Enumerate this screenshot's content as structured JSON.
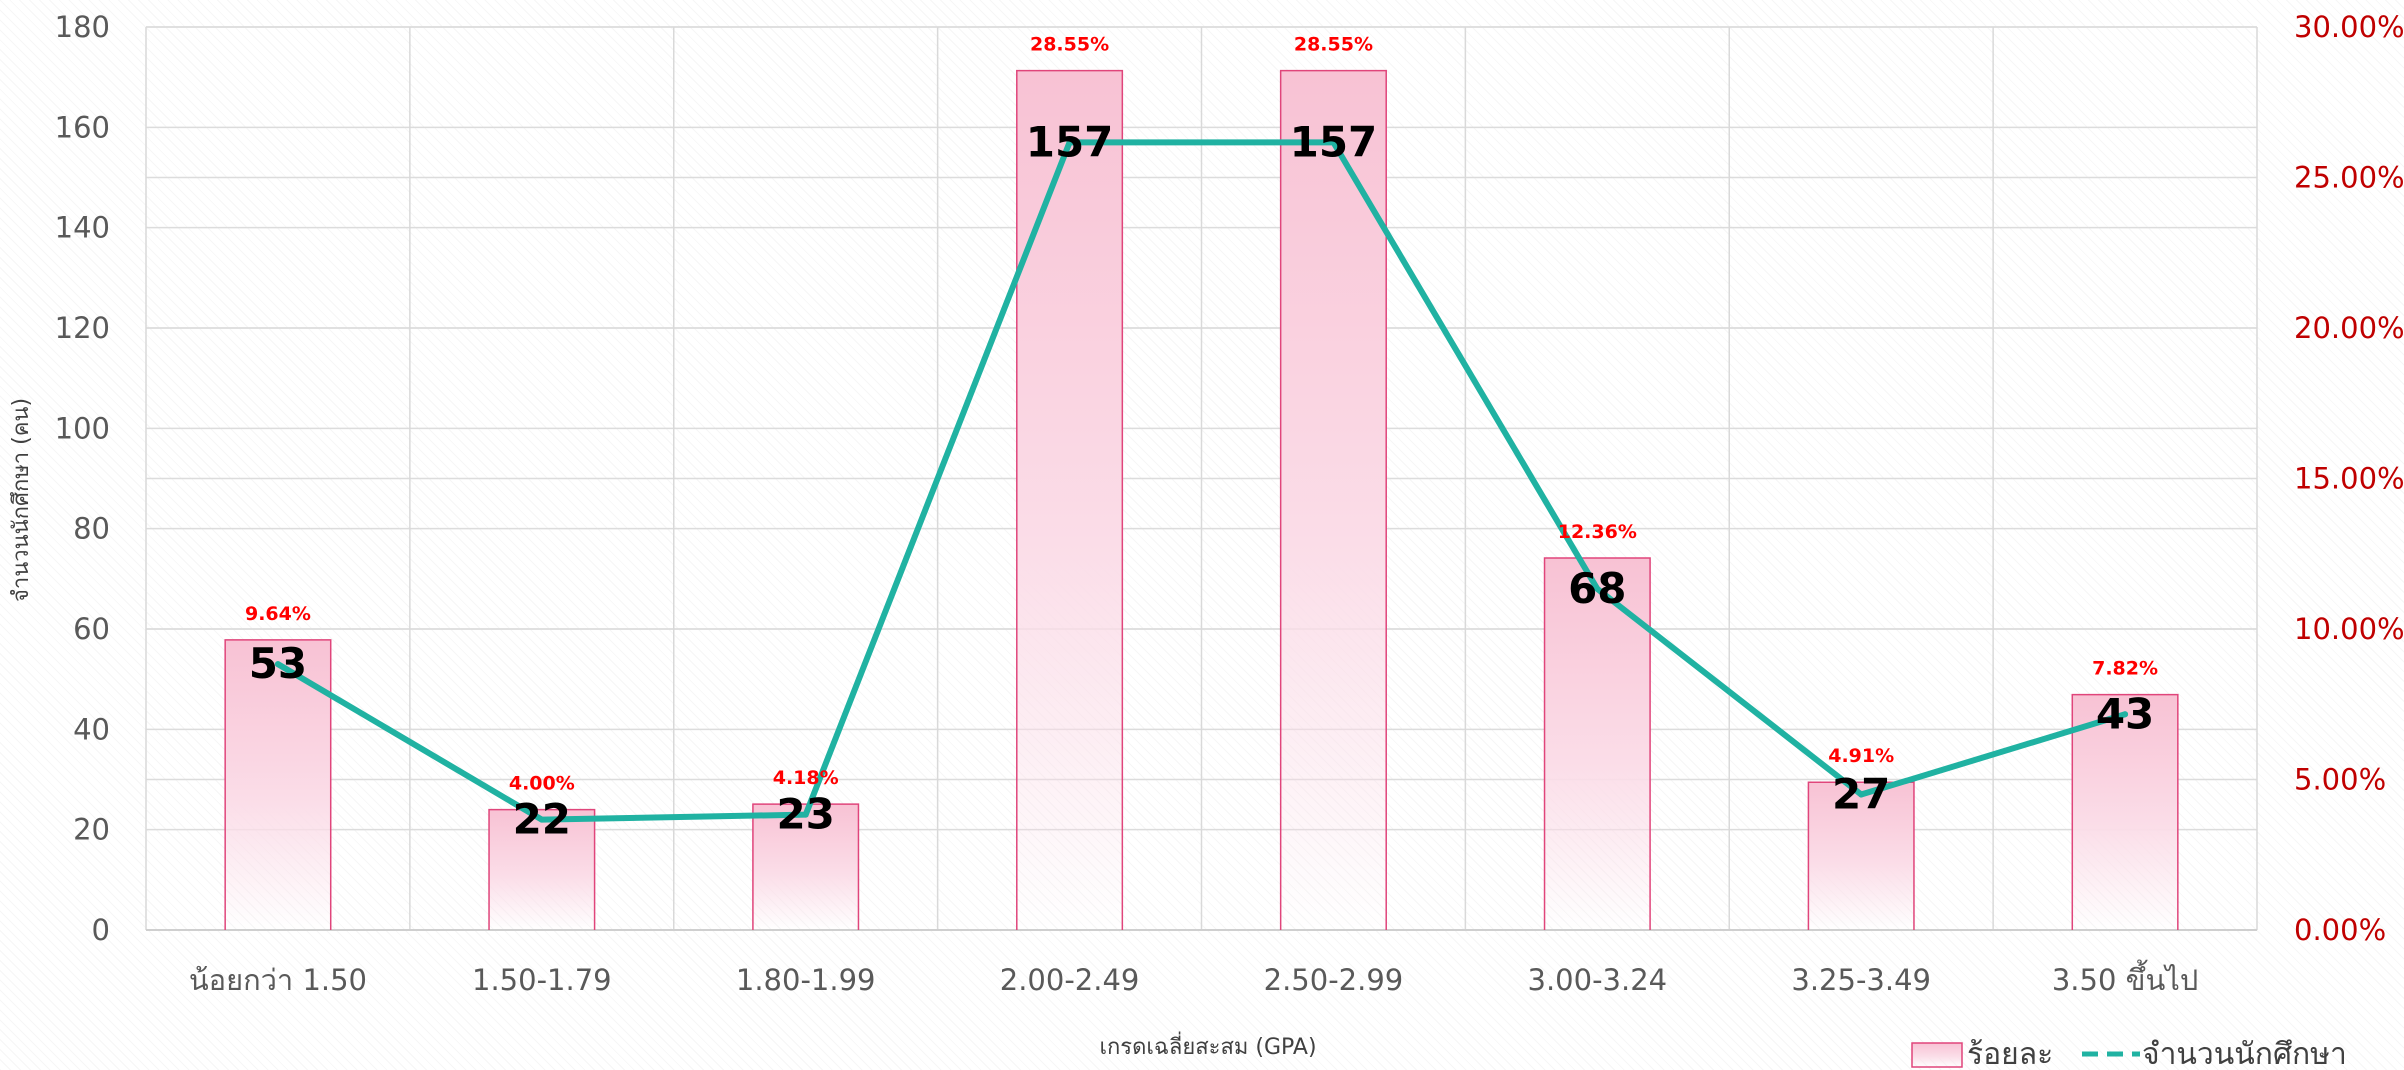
{
  "chart_data": {
    "type": "bar",
    "categories": [
      "น้อยกว่า 1.50",
      "1.50-1.79",
      "1.80-1.99",
      "2.00-2.49",
      "2.50-2.99",
      "3.00-3.24",
      "3.25-3.49",
      "3.50 ขึ้นไป"
    ],
    "series": [
      {
        "name": "ร้อยละ",
        "type": "bar",
        "axis": "right",
        "values": [
          9.64,
          4.0,
          4.18,
          28.55,
          28.55,
          12.36,
          4.91,
          7.82
        ],
        "labels": [
          "9.64%",
          "4.00%",
          "4.18%",
          "28.55%",
          "28.55%",
          "12.36%",
          "4.91%",
          "7.82%"
        ],
        "color": "#f06292"
      },
      {
        "name": "จำนวนนักศึกษา",
        "type": "line",
        "axis": "left",
        "values": [
          53,
          22,
          23,
          157,
          157,
          68,
          27,
          43
        ],
        "labels": [
          "53",
          "22",
          "23",
          "157",
          "157",
          "68",
          "27",
          "43"
        ],
        "color": "#20b2a2"
      }
    ],
    "xlabel": "เกรดเฉลี่ยสะสม (GPA)",
    "ylabel": "จำนวนนักศึกษา (คน)",
    "ylim": [
      0,
      180
    ],
    "y_ticks": [
      "0",
      "20",
      "40",
      "60",
      "80",
      "100",
      "120",
      "140",
      "160",
      "180"
    ],
    "y2lim": [
      0,
      30
    ],
    "y2_ticks": [
      "0.00%",
      "5.00%",
      "10.00%",
      "15.00%",
      "20.00%",
      "25.00%",
      "30.00%"
    ],
    "y2_color": "#c00000",
    "grid": true,
    "legend": {
      "position": "bottom-right",
      "items": [
        "ร้อยละ",
        "จำนวนนักศึกษา"
      ]
    }
  }
}
